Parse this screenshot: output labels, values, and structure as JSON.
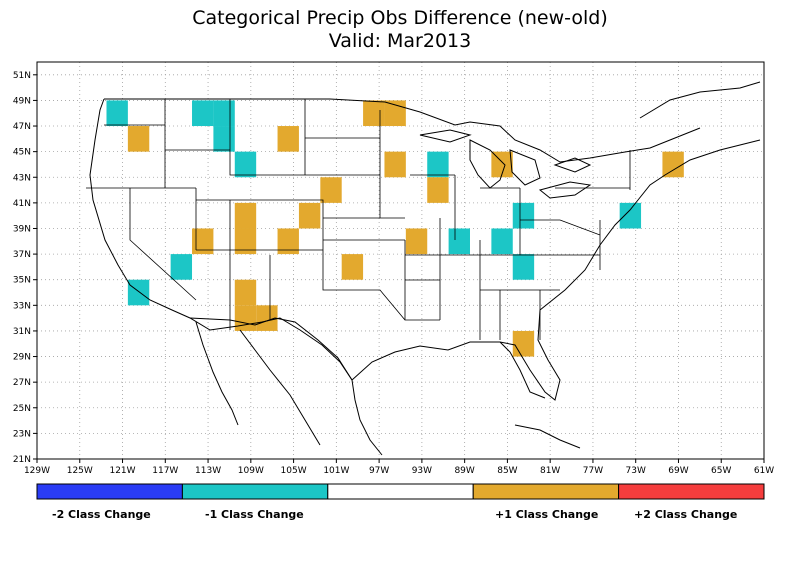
{
  "title": "Categorical Precip Obs Difference (new-old)",
  "subtitle": "Valid: Mar2013",
  "colors": {
    "minus2": "#2a3cf5",
    "minus1": "#1cc6c6",
    "zero": "#ffffff",
    "plus1": "#e3a92e",
    "plus2": "#f53d3d"
  },
  "axes": {
    "x_ticks": [
      "129W",
      "125W",
      "121W",
      "117W",
      "113W",
      "109W",
      "105W",
      "101W",
      "97W",
      "93W",
      "89W",
      "85W",
      "81W",
      "77W",
      "73W",
      "69W",
      "65W",
      "61W"
    ],
    "y_ticks": [
      "21N",
      "23N",
      "25N",
      "27N",
      "29N",
      "31N",
      "33N",
      "35N",
      "37N",
      "39N",
      "41N",
      "43N",
      "45N",
      "47N",
      "49N",
      "51N"
    ]
  },
  "legend": {
    "minus2": "-2 Class Change",
    "minus1": "-1 Class Change",
    "plus1": "+1 Class Change",
    "plus2": "+2 Class Change"
  },
  "cells": [
    {
      "lon": -121.5,
      "lat": 48,
      "value": -1
    },
    {
      "lon": -113.5,
      "lat": 48,
      "value": -1
    },
    {
      "lon": -111.5,
      "lat": 48,
      "value": -1
    },
    {
      "lon": -111.5,
      "lat": 46,
      "value": -1
    },
    {
      "lon": -109.5,
      "lat": 44,
      "value": -1
    },
    {
      "lon": -115.5,
      "lat": 36,
      "value": -1
    },
    {
      "lon": -119.5,
      "lat": 34,
      "value": -1
    },
    {
      "lon": -91.5,
      "lat": 44,
      "value": -1
    },
    {
      "lon": -89.5,
      "lat": 38,
      "value": -1
    },
    {
      "lon": -85.5,
      "lat": 38,
      "value": -1
    },
    {
      "lon": -83.5,
      "lat": 40,
      "value": -1
    },
    {
      "lon": -83.5,
      "lat": 36,
      "value": -1
    },
    {
      "lon": -73.5,
      "lat": 40,
      "value": -1
    },
    {
      "lon": -119.5,
      "lat": 46,
      "value": 1
    },
    {
      "lon": -105.5,
      "lat": 46,
      "value": 1
    },
    {
      "lon": -97.5,
      "lat": 48,
      "value": 1
    },
    {
      "lon": -95.5,
      "lat": 48,
      "value": 1
    },
    {
      "lon": -95.5,
      "lat": 44,
      "value": 1
    },
    {
      "lon": -101.5,
      "lat": 42,
      "value": 1
    },
    {
      "lon": -91.5,
      "lat": 42,
      "value": 1
    },
    {
      "lon": -85.5,
      "lat": 44,
      "value": 1
    },
    {
      "lon": -69.5,
      "lat": 44,
      "value": 1
    },
    {
      "lon": -103.5,
      "lat": 40,
      "value": 1
    },
    {
      "lon": -109.5,
      "lat": 40,
      "value": 1
    },
    {
      "lon": -109.5,
      "lat": 38,
      "value": 1
    },
    {
      "lon": -113.5,
      "lat": 38,
      "value": 1
    },
    {
      "lon": -105.5,
      "lat": 38,
      "value": 1
    },
    {
      "lon": -93.5,
      "lat": 38,
      "value": 1
    },
    {
      "lon": -99.5,
      "lat": 36,
      "value": 1
    },
    {
      "lon": -109.5,
      "lat": 34,
      "value": 1
    },
    {
      "lon": -109.5,
      "lat": 32,
      "value": 1
    },
    {
      "lon": -107.5,
      "lat": 32,
      "value": 1
    },
    {
      "lon": -83.5,
      "lat": 30,
      "value": 1
    }
  ]
}
